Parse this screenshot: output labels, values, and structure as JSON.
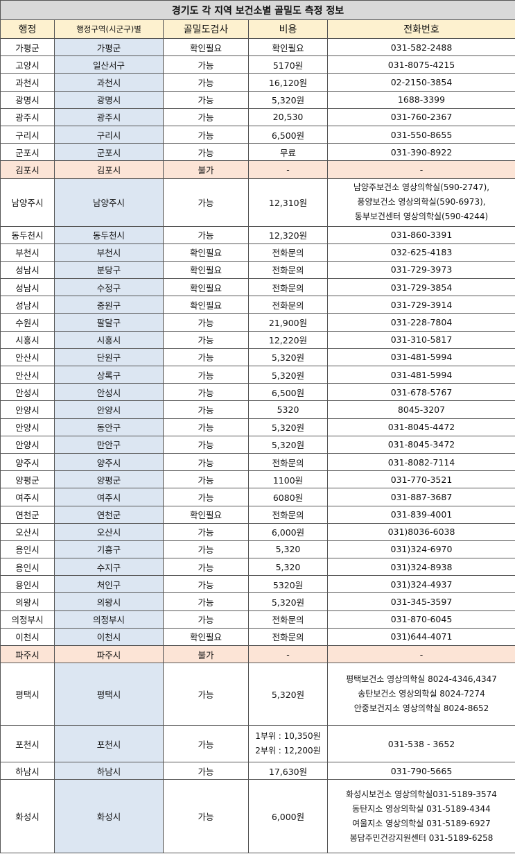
{
  "title": "경기도 각 지역 보건소별 골밀도 측정 정보",
  "table": {
    "headers": [
      "행정",
      "행정구역(시군구)별",
      "골밀도검사",
      "비용",
      "전화번호"
    ],
    "rows": [
      {
        "cells": [
          "가평군",
          "가평군",
          "확인필요",
          "확인필요",
          "031-582-2488"
        ]
      },
      {
        "cells": [
          "고양시",
          "일산서구",
          "가능",
          "5170원",
          "031-8075-4215"
        ]
      },
      {
        "cells": [
          "과천시",
          "과천시",
          "가능",
          "16,120원",
          "02-2150-3854"
        ]
      },
      {
        "cells": [
          "광명시",
          "광명시",
          "가능",
          "5,320원",
          "1688-3399"
        ]
      },
      {
        "cells": [
          "광주시",
          "광주시",
          "가능",
          "20,530",
          "031-760-2367"
        ]
      },
      {
        "cells": [
          "구리시",
          "구리시",
          "가능",
          "6,500원",
          "031-550-8655"
        ]
      },
      {
        "cells": [
          "군포시",
          "군포시",
          "가능",
          "무료",
          "031-390-8922"
        ]
      },
      {
        "cells": [
          "김포시",
          "김포시",
          "불가",
          "-",
          "-"
        ],
        "highlight": "#fce4d6"
      },
      {
        "cells": [
          "남양주시",
          "남양주시",
          "가능",
          "12,310원",
          [
            "남양주보건소 영상의학실(590-2747),",
            "풍양보건소 영상의학실(590-6973),",
            "동부보건센터 영상의학실(590-4244)"
          ]
        ]
      },
      {
        "cells": [
          "동두천시",
          "동두천시",
          "가능",
          "12,320원",
          "031-860-3391"
        ]
      },
      {
        "cells": [
          "부천시",
          "부천시",
          "확인필요",
          "전화문의",
          "032-625-4183"
        ]
      },
      {
        "cells": [
          "성남시",
          "분당구",
          "확인필요",
          "전화문의",
          "031-729-3973"
        ]
      },
      {
        "cells": [
          "성남시",
          "수정구",
          "확인필요",
          "전화문의",
          "031-729-3854"
        ]
      },
      {
        "cells": [
          "성남시",
          "중원구",
          "확인필요",
          "전화문의",
          "031-729-3914"
        ]
      },
      {
        "cells": [
          "수원시",
          "팔달구",
          "가능",
          "21,900원",
          "031-228-7804"
        ]
      },
      {
        "cells": [
          "시흥시",
          "시흥시",
          "가능",
          "12,220원",
          "031-310-5817"
        ]
      },
      {
        "cells": [
          "안산시",
          "단원구",
          "가능",
          "5,320원",
          "031-481-5994"
        ]
      },
      {
        "cells": [
          "안산시",
          "상록구",
          "가능",
          "5,320원",
          "031-481-5994"
        ]
      },
      {
        "cells": [
          "안성시",
          "안성시",
          "가능",
          "6,500원",
          "031-678-5767"
        ]
      },
      {
        "cells": [
          "안양시",
          "안양시",
          "가능",
          "5320",
          "8045-3207"
        ]
      },
      {
        "cells": [
          "안양시",
          "동안구",
          "가능",
          "5,320원",
          "031-8045-4472"
        ]
      },
      {
        "cells": [
          "안양시",
          "만안구",
          "가능",
          "5,320원",
          "031-8045-3472"
        ]
      },
      {
        "cells": [
          "양주시",
          "양주시",
          "가능",
          "전화문의",
          "031-8082-7114"
        ]
      },
      {
        "cells": [
          "양평군",
          "양평군",
          "가능",
          "1100원",
          "031-770-3521"
        ]
      },
      {
        "cells": [
          "여주시",
          "여주시",
          "가능",
          "6080원",
          "031-887-3687"
        ]
      },
      {
        "cells": [
          "연천군",
          "연천군",
          "확인필요",
          "전화문의",
          "031-839-4001"
        ]
      },
      {
        "cells": [
          "오산시",
          "오산시",
          "가능",
          "6,000원",
          "031)8036-6038"
        ]
      },
      {
        "cells": [
          "용인시",
          "기흥구",
          "가능",
          "5,320",
          "031)324-6970"
        ]
      },
      {
        "cells": [
          "용인시",
          "수지구",
          "가능",
          "5,320",
          "031)324-8938"
        ]
      },
      {
        "cells": [
          "용인시",
          "처인구",
          "가능",
          "5320원",
          "031)324-4937"
        ]
      },
      {
        "cells": [
          "의왕시",
          "의왕시",
          "가능",
          "5,320원",
          "031-345-3597"
        ]
      },
      {
        "cells": [
          "의정부시",
          "의정부시",
          "가능",
          "전화문의",
          "031-870-6045"
        ]
      },
      {
        "cells": [
          "이천시",
          "이천시",
          "확인필요",
          "전화문의",
          "031)644-4071"
        ]
      },
      {
        "cells": [
          "파주시",
          "파주시",
          "불가",
          "-",
          "-"
        ],
        "highlight": "#fce4d6"
      },
      {
        "cells": [
          "평택시",
          "평택시",
          "가능",
          "5,320원",
          [
            "평택보건소 영상의학실  8024-4346,4347",
            "송탄보건소 영상의학실  8024-7274",
            "안중보건지소 영상의학실  8024-8652"
          ]
        ]
      },
      {
        "cells": [
          "포천시",
          "포천시",
          "가능",
          [
            "1부위 : 10,350원",
            "2부위 : 12,200원"
          ],
          "031-538 - 3652"
        ]
      },
      {
        "cells": [
          "하남시",
          "하남시",
          "가능",
          "17,630원",
          "031-790-5665"
        ]
      },
      {
        "cells": [
          "화성시",
          "화성시",
          "가능",
          "6,000원",
          [
            "화성시보건소 영상의학실031-5189-3574",
            "동탄지소 영상의학실  031-5189-4344",
            "여울지소 영상의학실  031-5189-6927",
            "봉담주민건강지원센터  031-5189-6258"
          ]
        ]
      }
    ]
  }
}
